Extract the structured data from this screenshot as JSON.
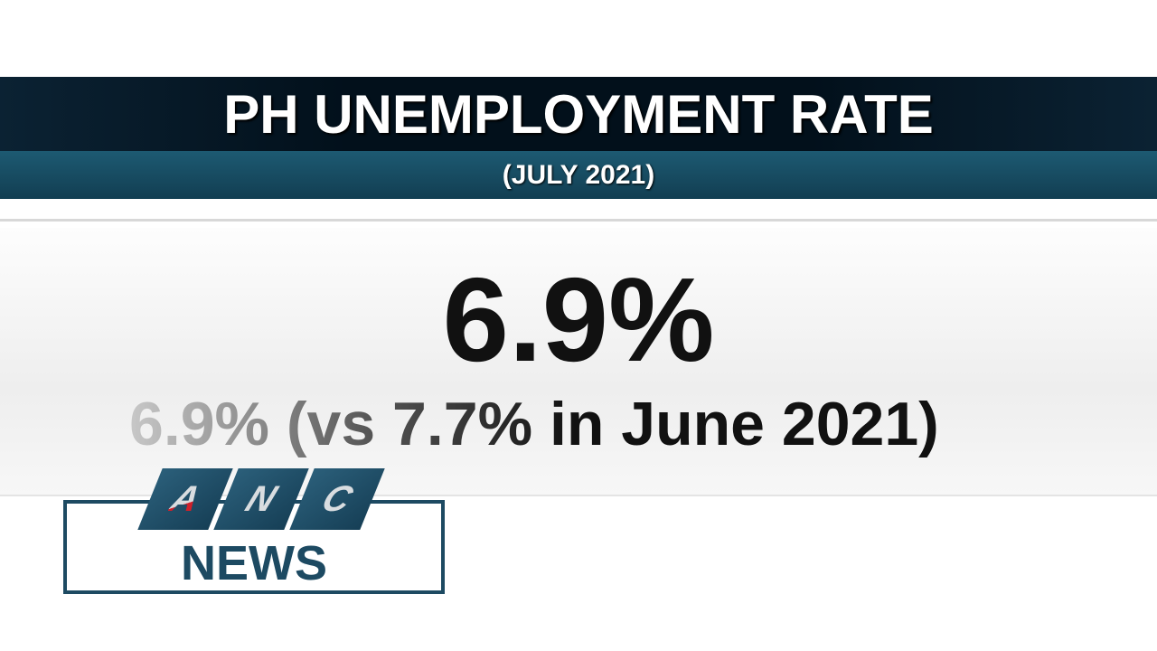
{
  "header": {
    "title": "PH UNEMPLOYMENT RATE",
    "subtitle": "(JULY 2021)"
  },
  "main": {
    "headline_value": "6.9%",
    "comparison": "6.9% (vs 7.7% in June 2021)"
  },
  "logo": {
    "letters": [
      "A",
      "N",
      "C"
    ],
    "label": "NEWS",
    "brand_color": "#1d4a62",
    "accent_color": "#d0202a"
  }
}
